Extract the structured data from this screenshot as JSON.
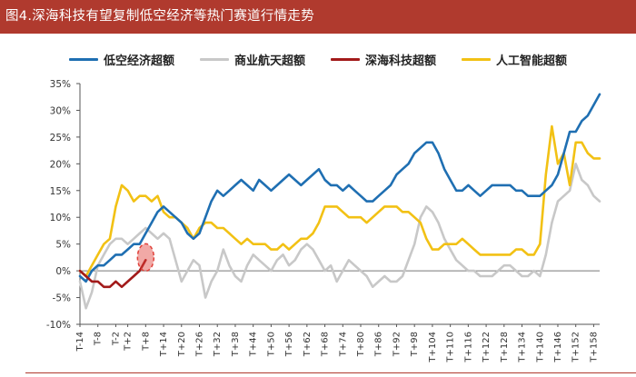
{
  "title": "图4.深海科技有望复制低空经济等热门赛道行情走势",
  "legend": [
    {
      "label": "低空经济超额",
      "color": "#1f6fb2"
    },
    {
      "label": "商业航天超额",
      "color": "#c8c8c8"
    },
    {
      "label": "深海科技超额",
      "color": "#a21a1a"
    },
    {
      "label": "人工智能超额",
      "color": "#f2c114"
    }
  ],
  "chart_data": {
    "type": "line",
    "title": "深海科技有望复制低空经济等热门赛道行情走势",
    "xlabel": "",
    "ylabel": "",
    "ylim": [
      -10,
      35
    ],
    "yticks": [
      -10,
      -5,
      0,
      5,
      10,
      15,
      20,
      25,
      30,
      35
    ],
    "ytick_labels": [
      "-10%",
      "-5%",
      "0%",
      "5%",
      "10%",
      "15%",
      "20%",
      "25%",
      "30%",
      "35%"
    ],
    "xlim": [
      -14,
      160
    ],
    "xtick_labels": [
      "T-14",
      "T-8",
      "T-2",
      "T+2",
      "T+8",
      "T+14",
      "T+20",
      "T+26",
      "T+32",
      "T+38",
      "T+44",
      "T+50",
      "T+56",
      "T+62",
      "T+68",
      "T+74",
      "T+80",
      "T+86",
      "T+92",
      "T+98",
      "T+104",
      "T+110",
      "T+116",
      "T+122",
      "T+128",
      "T+134",
      "T+140",
      "T+146",
      "T+152",
      "T+158"
    ],
    "grid": false,
    "legend_position": "top",
    "highlight": {
      "label": "circle near T+8",
      "x": 8,
      "y": 2.5,
      "color": "#e0413a"
    },
    "series": [
      {
        "name": "低空经济超额",
        "color": "#1f6fb2",
        "x": [
          -14,
          -12,
          -10,
          -8,
          -6,
          -4,
          -2,
          0,
          2,
          4,
          6,
          8,
          10,
          12,
          14,
          16,
          18,
          20,
          22,
          24,
          26,
          28,
          30,
          32,
          34,
          36,
          38,
          40,
          42,
          44,
          46,
          48,
          50,
          52,
          54,
          56,
          58,
          60,
          62,
          64,
          66,
          68,
          70,
          72,
          74,
          76,
          78,
          80,
          82,
          84,
          86,
          88,
          90,
          92,
          94,
          96,
          98,
          100,
          102,
          104,
          106,
          108,
          110,
          112,
          114,
          116,
          118,
          120,
          122,
          124,
          126,
          128,
          130,
          132,
          134,
          136,
          138,
          140,
          142,
          144,
          146,
          148,
          150,
          152,
          154,
          156,
          158,
          160
        ],
        "values": [
          -1,
          -2,
          0,
          1,
          1,
          2,
          3,
          3,
          4,
          5,
          5,
          7,
          9,
          11,
          12,
          11,
          10,
          9,
          7,
          6,
          7,
          10,
          13,
          15,
          14,
          15,
          16,
          17,
          16,
          15,
          17,
          16,
          15,
          16,
          17,
          18,
          17,
          16,
          17,
          18,
          19,
          17,
          16,
          16,
          15,
          16,
          15,
          14,
          13,
          13,
          14,
          15,
          16,
          18,
          19,
          20,
          22,
          23,
          24,
          24,
          22,
          19,
          17,
          15,
          15,
          16,
          15,
          14,
          15,
          16,
          16,
          16,
          16,
          15,
          15,
          14,
          14,
          14,
          15,
          16,
          18,
          22,
          26,
          26,
          28,
          29,
          31,
          33
        ]
      },
      {
        "name": "商业航天超额",
        "color": "#c8c8c8",
        "x": [
          -14,
          -12,
          -10,
          -8,
          -6,
          -4,
          -2,
          0,
          2,
          4,
          6,
          8,
          10,
          12,
          14,
          16,
          18,
          20,
          22,
          24,
          26,
          28,
          30,
          32,
          34,
          36,
          38,
          40,
          42,
          44,
          46,
          48,
          50,
          52,
          54,
          56,
          58,
          60,
          62,
          64,
          66,
          68,
          70,
          72,
          74,
          76,
          78,
          80,
          82,
          84,
          86,
          88,
          90,
          92,
          94,
          96,
          98,
          100,
          102,
          104,
          106,
          108,
          110,
          112,
          114,
          116,
          118,
          120,
          122,
          124,
          126,
          128,
          130,
          132,
          134,
          136,
          138,
          140,
          142,
          144,
          146,
          148,
          150,
          152,
          154,
          156,
          158,
          160
        ],
        "values": [
          -2,
          -7,
          -4,
          1,
          3,
          5,
          6,
          6,
          5,
          6,
          7,
          8,
          7,
          6,
          7,
          6,
          2,
          -2,
          0,
          2,
          1,
          -5,
          -2,
          0,
          4,
          1,
          -1,
          -2,
          1,
          3,
          2,
          1,
          0,
          2,
          3,
          1,
          2,
          4,
          5,
          4,
          2,
          0,
          1,
          -2,
          0,
          2,
          1,
          0,
          -1,
          -3,
          -2,
          -1,
          -2,
          -2,
          -1,
          2,
          5,
          10,
          12,
          11,
          9,
          6,
          4,
          2,
          1,
          0,
          0,
          -1,
          -1,
          -1,
          0,
          1,
          1,
          0,
          -1,
          -1,
          0,
          -1,
          3,
          9,
          13,
          14,
          15,
          20,
          17,
          16,
          14,
          13
        ]
      },
      {
        "name": "深海科技超额",
        "color": "#a21a1a",
        "x": [
          -14,
          -12,
          -10,
          -8,
          -6,
          -4,
          -2,
          0,
          2,
          4,
          6,
          8
        ],
        "values": [
          0,
          -1,
          -2,
          -2,
          -3,
          -3,
          -2,
          -3,
          -2,
          -1,
          0,
          2
        ]
      },
      {
        "name": "人工智能超额",
        "color": "#f2c114",
        "x": [
          -14,
          -12,
          -10,
          -8,
          -6,
          -4,
          -2,
          0,
          2,
          4,
          6,
          8,
          10,
          12,
          14,
          16,
          18,
          20,
          22,
          24,
          26,
          28,
          30,
          32,
          34,
          36,
          38,
          40,
          42,
          44,
          46,
          48,
          50,
          52,
          54,
          56,
          58,
          60,
          62,
          64,
          66,
          68,
          70,
          72,
          74,
          76,
          78,
          80,
          82,
          84,
          86,
          88,
          90,
          92,
          94,
          96,
          98,
          100,
          102,
          104,
          106,
          108,
          110,
          112,
          114,
          116,
          118,
          120,
          122,
          124,
          126,
          128,
          130,
          132,
          134,
          136,
          138,
          140,
          142,
          144,
          146,
          148,
          150,
          152,
          154,
          156,
          158,
          160
        ],
        "values": [
          0,
          -1,
          1,
          3,
          5,
          6,
          12,
          16,
          15,
          13,
          14,
          14,
          13,
          14,
          11,
          10,
          10,
          9,
          8,
          6,
          8,
          9,
          9,
          8,
          8,
          7,
          6,
          5,
          6,
          5,
          5,
          5,
          4,
          4,
          5,
          4,
          5,
          6,
          6,
          7,
          9,
          12,
          12,
          12,
          11,
          10,
          10,
          10,
          9,
          10,
          11,
          12,
          12,
          12,
          11,
          11,
          10,
          9,
          6,
          4,
          4,
          5,
          5,
          5,
          6,
          5,
          4,
          3,
          3,
          3,
          3,
          3,
          3,
          4,
          4,
          3,
          3,
          5,
          18,
          27,
          20,
          22,
          16,
          24,
          24,
          22,
          21,
          21
        ]
      }
    ]
  }
}
